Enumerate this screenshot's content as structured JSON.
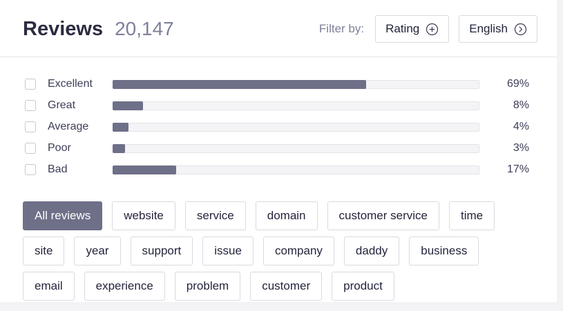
{
  "header": {
    "title": "Reviews",
    "count": "20,147",
    "filter_label": "Filter by:",
    "filter_buttons": [
      {
        "label": "Rating",
        "icon": "plus-circle-icon"
      },
      {
        "label": "English",
        "icon": "chevron-right-circle-icon"
      }
    ]
  },
  "ratings": [
    {
      "label": "Excellent",
      "percent": 69,
      "percent_label": "69%"
    },
    {
      "label": "Great",
      "percent": 8,
      "percent_label": "8%"
    },
    {
      "label": "Average",
      "percent": 4,
      "percent_label": "4%"
    },
    {
      "label": "Poor",
      "percent": 3,
      "percent_label": "3%"
    },
    {
      "label": "Bad",
      "percent": 17,
      "percent_label": "17%"
    }
  ],
  "tags": [
    {
      "label": "All reviews",
      "selected": true
    },
    {
      "label": "website"
    },
    {
      "label": "service"
    },
    {
      "label": "domain"
    },
    {
      "label": "customer service"
    },
    {
      "label": "time"
    },
    {
      "label": "site"
    },
    {
      "label": "year"
    },
    {
      "label": "support"
    },
    {
      "label": "issue"
    },
    {
      "label": "company"
    },
    {
      "label": "daddy"
    },
    {
      "label": "business"
    },
    {
      "label": "email"
    },
    {
      "label": "experience"
    },
    {
      "label": "problem"
    },
    {
      "label": "customer"
    },
    {
      "label": "product"
    }
  ],
  "colors": {
    "accent": "#6e7088",
    "bar_track": "#f4f4f6",
    "text": "#2b2c41",
    "muted_text": "#7e819b",
    "border": "#d9d9e1"
  }
}
